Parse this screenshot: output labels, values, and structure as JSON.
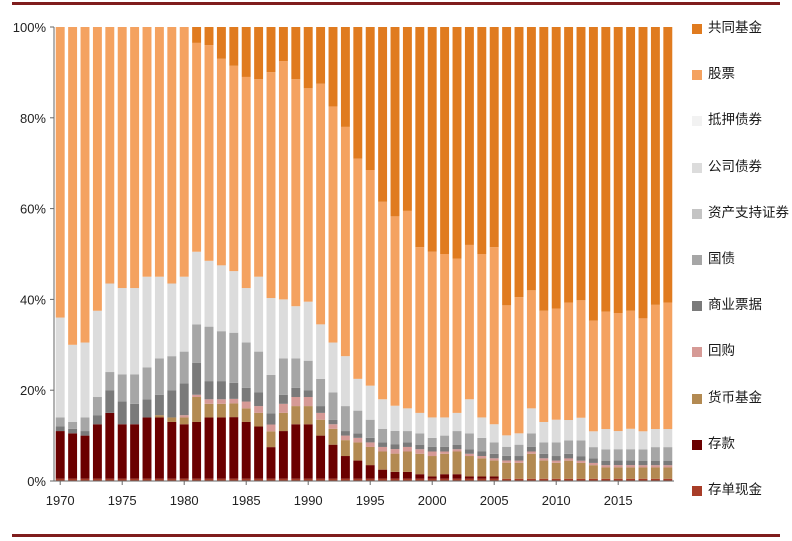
{
  "chart_data": {
    "type": "bar",
    "stacked": true,
    "percent": true,
    "title": "",
    "xlabel": "",
    "ylabel": "",
    "ylim": [
      0,
      100
    ],
    "ytick_labels": [
      "0%",
      "20%",
      "40%",
      "60%",
      "80%",
      "100%"
    ],
    "xtick_labels": [
      "1970",
      "1975",
      "1980",
      "1985",
      "1990",
      "1995",
      "2000",
      "2005",
      "2010",
      "2015"
    ],
    "grid": false,
    "legend_position": "right",
    "categories": [
      1970,
      1971,
      1972,
      1973,
      1974,
      1975,
      1976,
      1977,
      1978,
      1979,
      1980,
      1981,
      1982,
      1983,
      1984,
      1985,
      1986,
      1987,
      1988,
      1989,
      1990,
      1991,
      1992,
      1993,
      1994,
      1995,
      1996,
      1997,
      1998,
      1999,
      2000,
      2001,
      2002,
      2003,
      2004,
      2005,
      2006,
      2007,
      2008,
      2009,
      2010,
      2011,
      2012,
      2013,
      2014,
      2015,
      2016,
      2017,
      2018,
      2019
    ],
    "series": [
      {
        "name": "存单现金",
        "color": "#a83d28",
        "values": [
          0.5,
          0.5,
          0.5,
          0.5,
          0.5,
          0.5,
          0.5,
          0.5,
          0.5,
          0.5,
          0.5,
          0.5,
          0.5,
          0.5,
          0.5,
          0.5,
          0.5,
          0.5,
          0.5,
          0.5,
          0.5,
          0.5,
          0.5,
          0.5,
          0.5,
          0.5,
          0.5,
          0.5,
          0.5,
          0.5,
          0.5,
          0.5,
          0.5,
          0.5,
          0.5,
          0.5,
          0.5,
          0.5,
          0.5,
          0.5,
          0.5,
          0.5,
          0.5,
          0.5,
          0.5,
          0.5,
          0.5,
          0.5,
          0.5,
          0.5
        ]
      },
      {
        "name": "存款",
        "color": "#6b0000",
        "values": [
          10.5,
          10,
          9.5,
          12,
          14.5,
          12,
          12,
          13.5,
          13.5,
          12.5,
          12,
          12.5,
          13.5,
          13.5,
          13.5,
          12.5,
          11.5,
          7,
          10.5,
          12,
          12,
          9.5,
          7.5,
          5,
          4,
          3,
          2,
          1.5,
          1.5,
          1,
          0.5,
          1,
          1,
          0.5,
          0.5,
          0.5,
          0,
          0,
          0,
          0,
          0,
          0,
          0,
          0,
          0,
          0,
          0,
          0,
          0,
          0
        ]
      },
      {
        "name": "货币基金",
        "color": "#b38a52",
        "values": [
          0,
          0,
          0,
          0,
          0,
          0,
          0,
          0,
          0.5,
          1,
          1.5,
          5.5,
          3,
          3,
          3,
          3,
          3,
          3.5,
          4,
          4,
          4,
          3.5,
          3.5,
          3.5,
          4,
          4,
          4,
          4,
          4.5,
          4.5,
          4.5,
          4.5,
          5,
          4.5,
          4,
          3.5,
          3.5,
          3.5,
          5.5,
          4,
          3.5,
          4,
          3.5,
          3,
          2.5,
          2.5,
          2.5,
          2.5,
          2.5,
          2.5
        ]
      },
      {
        "name": "回购",
        "color": "#d69a96",
        "values": [
          0,
          0,
          0,
          0,
          0,
          0,
          0,
          0,
          0,
          0,
          0.5,
          0.5,
          1,
          1,
          1,
          1.5,
          1.5,
          1.5,
          2,
          2,
          2,
          1.5,
          1,
          1,
          1,
          1,
          1,
          1,
          1,
          1,
          1,
          0.5,
          0.5,
          0.5,
          0.5,
          0.5,
          0.5,
          0.5,
          0.5,
          0.5,
          0.5,
          0.5,
          0.5,
          0.5,
          0.5,
          0.5,
          0.5,
          0.5,
          0.5,
          0.5
        ]
      },
      {
        "name": "商业票据",
        "color": "#7a7a7a",
        "values": [
          1,
          1,
          1,
          2,
          5,
          5,
          4.5,
          4,
          4.5,
          6,
          7,
          7,
          4,
          4,
          3.5,
          3,
          3,
          2.5,
          2,
          2,
          1.5,
          1.5,
          1,
          1,
          1,
          1,
          1,
          1,
          1,
          1,
          1,
          1,
          1,
          1,
          1,
          1,
          1,
          1,
          1,
          1,
          1,
          1,
          1,
          1,
          1,
          1,
          1,
          1,
          1,
          1
        ]
      },
      {
        "name": "国债",
        "color": "#a6a6a6",
        "values": [
          2,
          1.5,
          3,
          4,
          4,
          6,
          6.5,
          7,
          8,
          7.5,
          7,
          8.5,
          12,
          11,
          11,
          10,
          9,
          8.5,
          8,
          6.5,
          6.5,
          6,
          6,
          5.5,
          5,
          4,
          3,
          3,
          2.5,
          2.5,
          2,
          2.5,
          3,
          3.5,
          3,
          2.5,
          2,
          2.5,
          3,
          2.5,
          3,
          3,
          3.5,
          2.5,
          2.5,
          2.5,
          2.5,
          2.5,
          3,
          3
        ]
      },
      {
        "name": "资产支持证券",
        "color": "#c4c4c4",
        "values": [
          0,
          0,
          0,
          0,
          0,
          0,
          0,
          0,
          0,
          0,
          0,
          0,
          0,
          0,
          0,
          0,
          0,
          0,
          0,
          0,
          0,
          0,
          0,
          0,
          0,
          0,
          0,
          0,
          0,
          0,
          0,
          0,
          0,
          0,
          0,
          0,
          0,
          0,
          0,
          0,
          0,
          0,
          0,
          0,
          0,
          0,
          0,
          0,
          0,
          0
        ]
      },
      {
        "name": "公司债券",
        "color": "#dcdcdc",
        "values": [
          22,
          17,
          16.5,
          19,
          19.5,
          19,
          19,
          20,
          18,
          16,
          16.5,
          16,
          14.5,
          14.5,
          13.5,
          12,
          16.5,
          17,
          13,
          11.5,
          13,
          12,
          11,
          11,
          7,
          7.5,
          6.5,
          5.5,
          5,
          4.5,
          4.5,
          4,
          4,
          7.5,
          4.5,
          4,
          2.5,
          2.5,
          5.5,
          4.5,
          5,
          4.5,
          5,
          3.5,
          4.5,
          4,
          4.5,
          4,
          4,
          4
        ]
      },
      {
        "name": "抵押债券",
        "color": "#f2f2f2",
        "values": [
          0,
          0,
          0,
          0,
          0,
          0,
          0,
          0,
          0,
          0,
          0,
          0,
          0,
          0,
          0,
          0,
          0,
          0,
          0,
          0,
          0,
          0,
          0,
          0,
          0,
          0,
          0,
          0,
          0,
          0,
          0,
          0,
          0,
          0,
          0,
          0,
          0,
          0,
          0,
          0,
          0,
          0,
          0,
          0,
          0,
          0,
          0,
          0,
          0,
          0
        ]
      },
      {
        "name": "股票",
        "color": "#f4a260",
        "values": [
          64,
          70,
          69.5,
          62.5,
          56.5,
          57.5,
          57.5,
          55,
          55,
          56.5,
          55,
          46,
          47.5,
          45.5,
          45,
          46.5,
          43.5,
          50,
          52.5,
          50,
          47,
          53,
          52,
          50.5,
          48.5,
          47.5,
          43.5,
          41.5,
          43.5,
          36.5,
          36.5,
          36,
          34,
          34,
          36,
          39,
          28.5,
          30,
          26,
          24.5,
          24.5,
          26,
          26,
          24.5,
          26,
          26,
          26,
          25,
          27.5,
          28
        ]
      },
      {
        "name": "共同基金",
        "color": "#e07b1f",
        "values": [
          0,
          0,
          0,
          0,
          0,
          0,
          0,
          0,
          0,
          0,
          0,
          3.5,
          4,
          7,
          8.5,
          11,
          11.5,
          10,
          7.5,
          11.5,
          13.5,
          12.5,
          17.5,
          22,
          29,
          31.5,
          38.5,
          41.5,
          40.5,
          48.5,
          49.5,
          50,
          51,
          48,
          50,
          48.5,
          61,
          59.5,
          58,
          62.5,
          62,
          61,
          60.5,
          65,
          63,
          63,
          62.5,
          64.5,
          61.5,
          61
        ]
      }
    ]
  }
}
